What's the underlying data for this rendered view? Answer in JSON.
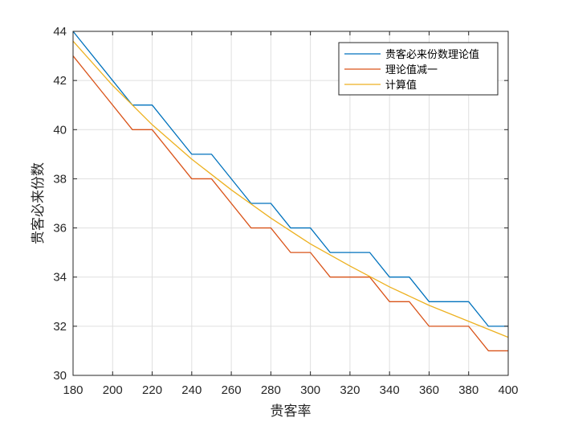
{
  "chart_data": {
    "type": "line",
    "xlabel": "贵客率",
    "ylabel": "贵客必来份数",
    "xlim": [
      180,
      400
    ],
    "ylim": [
      30,
      44
    ],
    "xticks": [
      180,
      200,
      220,
      240,
      260,
      280,
      300,
      320,
      340,
      360,
      380,
      400
    ],
    "yticks": [
      30,
      32,
      34,
      36,
      38,
      40,
      42,
      44
    ],
    "grid": true,
    "legend_position": "top-right",
    "series": [
      {
        "name": "贵客必来份数理论值",
        "color": "#0072BD",
        "x": [
          180,
          210,
          220,
          240,
          250,
          270,
          280,
          290,
          300,
          310,
          330,
          340,
          350,
          360,
          380,
          390,
          400
        ],
        "y": [
          44,
          41,
          41,
          39,
          39,
          37,
          37,
          36,
          36,
          35,
          35,
          34,
          34,
          33,
          33,
          32,
          32
        ]
      },
      {
        "name": "理论值减一",
        "color": "#D95319",
        "x": [
          180,
          210,
          220,
          240,
          250,
          270,
          280,
          290,
          300,
          310,
          330,
          340,
          350,
          360,
          380,
          390,
          400
        ],
        "y": [
          43,
          40,
          40,
          38,
          38,
          36,
          36,
          35,
          35,
          34,
          34,
          33,
          33,
          32,
          32,
          31,
          31
        ]
      },
      {
        "name": "计算值",
        "color": "#EDB120",
        "x": [
          180,
          200,
          220,
          240,
          260,
          280,
          300,
          320,
          340,
          360,
          380,
          400
        ],
        "y": [
          43.6,
          41.8,
          40.2,
          38.8,
          37.55,
          36.4,
          35.35,
          34.45,
          33.6,
          32.85,
          32.2,
          31.55
        ]
      }
    ]
  }
}
